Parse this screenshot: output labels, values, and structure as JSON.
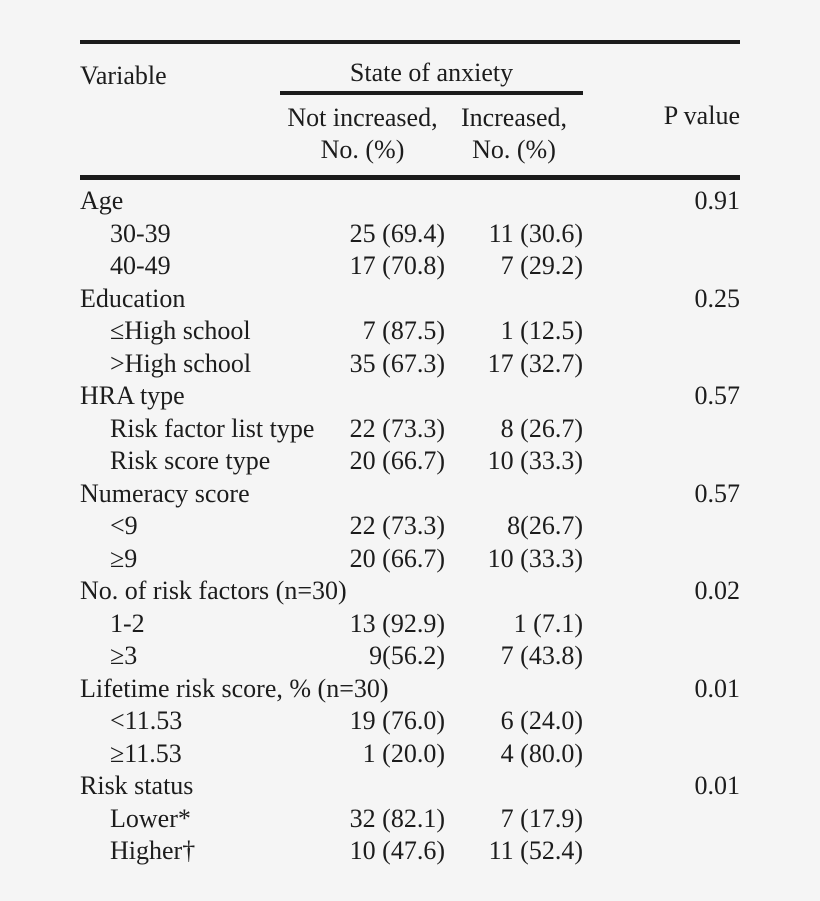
{
  "table": {
    "header": {
      "variable": "Variable",
      "group": "State of anxiety",
      "not_increased_line1": "Not increased,",
      "not_increased_line2": "No. (%)",
      "increased_line1": "Increased,",
      "increased_line2": "No. (%)",
      "p_value": "P value"
    },
    "rows": [
      {
        "label": "Age",
        "group": true,
        "p_value": "0.91"
      },
      {
        "label": "30-39",
        "group": false,
        "not_increased": "25 (69.4)",
        "increased": "11 (30.6)",
        "p_value": ""
      },
      {
        "label": "40-49",
        "group": false,
        "not_increased": "17 (70.8)",
        "increased": "7 (29.2)",
        "p_value": ""
      },
      {
        "label": "Education",
        "group": true,
        "p_value": "0.25"
      },
      {
        "label": "≤High school",
        "group": false,
        "not_increased": "7 (87.5)",
        "increased": "1 (12.5)",
        "p_value": ""
      },
      {
        "label": ">High school",
        "group": false,
        "not_increased": "35 (67.3)",
        "increased": "17 (32.7)",
        "p_value": ""
      },
      {
        "label": "HRA type",
        "group": true,
        "p_value": "0.57"
      },
      {
        "label": "Risk factor list type",
        "group": false,
        "not_increased": "22 (73.3)",
        "increased": "8 (26.7)",
        "p_value": ""
      },
      {
        "label": "Risk score type",
        "group": false,
        "not_increased": "20 (66.7)",
        "increased": "10 (33.3)",
        "p_value": ""
      },
      {
        "label": "Numeracy score",
        "group": true,
        "p_value": "0.57"
      },
      {
        "label": "<9",
        "group": false,
        "not_increased": "22 (73.3)",
        "increased": "8(26.7)",
        "p_value": ""
      },
      {
        "label": "≥9",
        "group": false,
        "not_increased": "20 (66.7)",
        "increased": "10 (33.3)",
        "p_value": ""
      },
      {
        "label": "No. of risk factors (n=30)",
        "group": true,
        "p_value": "0.02"
      },
      {
        "label": "1-2",
        "group": false,
        "not_increased": "13 (92.9)",
        "increased": "1 (7.1)",
        "p_value": ""
      },
      {
        "label": "≥3",
        "group": false,
        "not_increased": "9(56.2)",
        "increased": "7 (43.8)",
        "p_value": ""
      },
      {
        "label": "Lifetime risk score, % (n=30)",
        "group": true,
        "p_value": "0.01"
      },
      {
        "label": "<11.53",
        "group": false,
        "not_increased": "19 (76.0)",
        "increased": "6 (24.0)",
        "p_value": ""
      },
      {
        "label": "≥11.53",
        "group": false,
        "not_increased": "1 (20.0)",
        "increased": "4 (80.0)",
        "p_value": ""
      },
      {
        "label": "Risk status",
        "group": true,
        "p_value": "0.01"
      },
      {
        "label": "Lower*",
        "group": false,
        "not_increased": "32 (82.1)",
        "increased": "7 (17.9)",
        "p_value": ""
      },
      {
        "label": "Higher†",
        "group": false,
        "not_increased": "10 (47.6)",
        "increased": "11 (52.4)",
        "p_value": ""
      }
    ],
    "colors": {
      "background": "#f5f5f5",
      "text": "#1c1c1c",
      "rule": "#1b1b1b"
    }
  }
}
